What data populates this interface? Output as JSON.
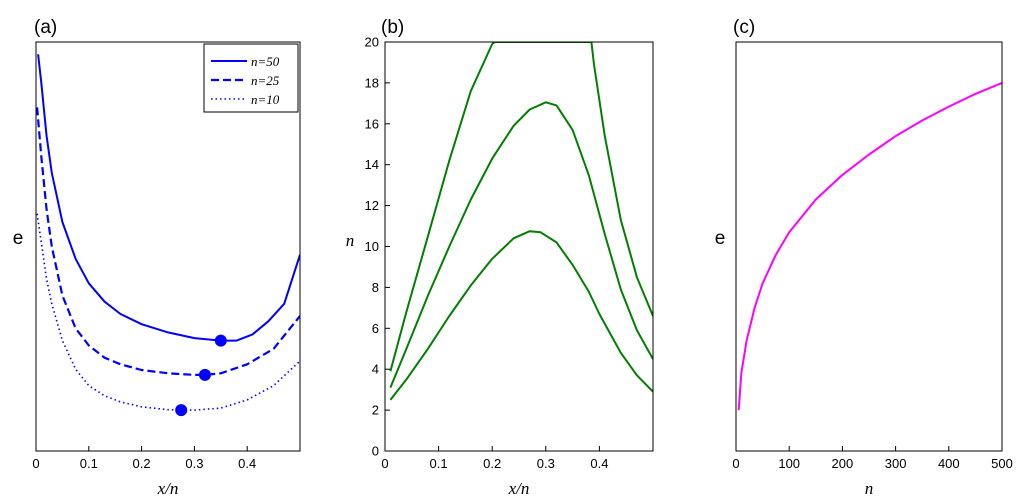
{
  "chart_data": [
    {
      "panel": "(a)",
      "type": "line",
      "xlabel": "x/n",
      "ylabel": "e",
      "xlim": [
        0,
        0.5
      ],
      "x_ticks": [
        "0",
        "0.1",
        "0.2",
        "0.3",
        "0.4"
      ],
      "y_ticks": [],
      "ylim": [
        0,
        1
      ],
      "legend_position": "top-right",
      "color": "#0000ff",
      "series": [
        {
          "name": "n=50",
          "style": "solid",
          "x": [
            0.004,
            0.01,
            0.02,
            0.03,
            0.05,
            0.075,
            0.1,
            0.13,
            0.16,
            0.2,
            0.25,
            0.3,
            0.35,
            0.38,
            0.41,
            0.44,
            0.47,
            0.5
          ],
          "y": [
            0.97,
            0.9,
            0.77,
            0.68,
            0.56,
            0.47,
            0.41,
            0.365,
            0.335,
            0.31,
            0.29,
            0.276,
            0.27,
            0.27,
            0.285,
            0.317,
            0.36,
            0.48
          ],
          "marker": {
            "x": 0.35,
            "y": 0.27
          }
        },
        {
          "name": "n=25",
          "style": "dashed",
          "x": [
            0.002,
            0.01,
            0.02,
            0.03,
            0.05,
            0.075,
            0.1,
            0.13,
            0.16,
            0.2,
            0.25,
            0.3,
            0.32,
            0.35,
            0.4,
            0.45,
            0.5
          ],
          "y": [
            0.84,
            0.72,
            0.59,
            0.5,
            0.38,
            0.3,
            0.258,
            0.228,
            0.212,
            0.198,
            0.19,
            0.186,
            0.186,
            0.19,
            0.212,
            0.25,
            0.33
          ],
          "marker": {
            "x": 0.32,
            "y": 0.186
          }
        },
        {
          "name": "n=10",
          "style": "dotted",
          "x": [
            0.002,
            0.01,
            0.02,
            0.03,
            0.05,
            0.075,
            0.1,
            0.13,
            0.16,
            0.2,
            0.25,
            0.275,
            0.3,
            0.35,
            0.4,
            0.45,
            0.5
          ],
          "y": [
            0.58,
            0.51,
            0.42,
            0.36,
            0.27,
            0.2,
            0.16,
            0.135,
            0.12,
            0.108,
            0.101,
            0.1,
            0.1,
            0.105,
            0.125,
            0.16,
            0.22
          ],
          "marker": {
            "x": 0.275,
            "y": 0.1
          }
        }
      ]
    },
    {
      "panel": "(b)",
      "type": "line",
      "xlabel": "x/n",
      "ylabel": "n",
      "xlim": [
        0,
        0.5
      ],
      "ylim": [
        0,
        20
      ],
      "x_ticks": [
        "0",
        "0.1",
        "0.2",
        "0.3",
        "0.4"
      ],
      "y_ticks": [
        "0",
        "2",
        "4",
        "6",
        "8",
        "10",
        "12",
        "14",
        "16",
        "18",
        "20"
      ],
      "color": "#007f00",
      "series": [
        {
          "name": "curve-1",
          "x": [
            0.01,
            0.04,
            0.08,
            0.12,
            0.16,
            0.2,
            0.24,
            0.27,
            0.29,
            0.32,
            0.35,
            0.38,
            0.4,
            0.44,
            0.47,
            0.5
          ],
          "y": [
            2.5,
            3.5,
            5.0,
            6.6,
            8.1,
            9.4,
            10.4,
            10.75,
            10.7,
            10.2,
            9.1,
            7.8,
            6.7,
            4.8,
            3.7,
            2.9
          ]
        },
        {
          "name": "curve-2",
          "x": [
            0.01,
            0.04,
            0.08,
            0.12,
            0.16,
            0.2,
            0.24,
            0.27,
            0.3,
            0.32,
            0.35,
            0.38,
            0.41,
            0.44,
            0.47,
            0.5
          ],
          "y": [
            3.1,
            5.0,
            7.6,
            10.0,
            12.3,
            14.3,
            15.9,
            16.7,
            17.05,
            16.9,
            15.7,
            13.5,
            10.6,
            7.9,
            5.9,
            4.5
          ]
        },
        {
          "name": "curve-3",
          "x": [
            0.01,
            0.04,
            0.08,
            0.12,
            0.16,
            0.2,
            0.205,
            0.385,
            0.39,
            0.41,
            0.44,
            0.47,
            0.5
          ],
          "y": [
            3.9,
            6.8,
            10.5,
            14.2,
            17.6,
            19.9,
            20.0,
            20.0,
            18.9,
            15.4,
            11.3,
            8.5,
            6.6
          ]
        }
      ]
    },
    {
      "panel": "(c)",
      "type": "line",
      "xlabel": "n",
      "ylabel": "e",
      "xlim": [
        0,
        500
      ],
      "ylim": [
        0,
        1
      ],
      "x_ticks": [
        "0",
        "100",
        "200",
        "300",
        "400",
        "500"
      ],
      "y_ticks": [],
      "color": "#ff00ff",
      "series": [
        {
          "name": "curve",
          "x": [
            5,
            10,
            20,
            35,
            50,
            75,
            100,
            150,
            200,
            250,
            300,
            350,
            400,
            450,
            500
          ],
          "y": [
            0.1,
            0.19,
            0.27,
            0.35,
            0.41,
            0.48,
            0.535,
            0.615,
            0.675,
            0.725,
            0.77,
            0.808,
            0.842,
            0.873,
            0.9
          ]
        }
      ]
    }
  ]
}
